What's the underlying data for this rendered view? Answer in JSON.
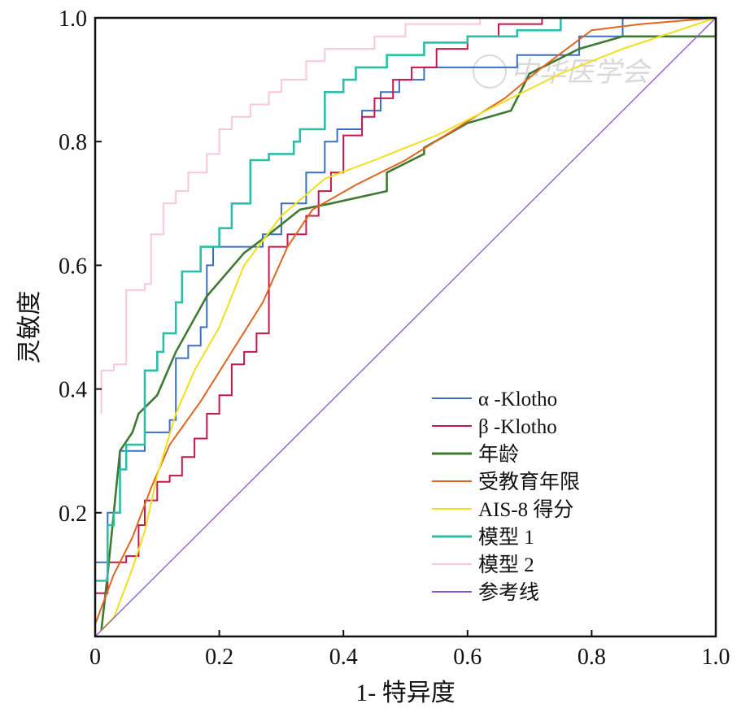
{
  "chart_data": {
    "type": "line",
    "title": "",
    "xlabel": "1- 特异度",
    "ylabel": "灵敏度",
    "xlim": [
      0,
      1
    ],
    "ylim": [
      0,
      1
    ],
    "xticks": [
      "0",
      "0.2",
      "0.4",
      "0.6",
      "0.8",
      "1.0"
    ],
    "xtick_values": [
      0,
      0.2,
      0.4,
      0.6,
      0.8,
      1.0
    ],
    "yticks": [
      "0.2",
      "0.4",
      "0.6",
      "0.8",
      "1.0"
    ],
    "ytick_values": [
      0.2,
      0.4,
      0.6,
      0.8,
      1.0
    ],
    "grid": false,
    "legend_position": "bottom-right",
    "watermark": "中华医学会",
    "series": [
      {
        "name": "α -Klotho",
        "color": "#3a6fc4",
        "step": true,
        "points": [
          [
            0,
            0.12
          ],
          [
            0.02,
            0.12
          ],
          [
            0.02,
            0.2
          ],
          [
            0.04,
            0.2
          ],
          [
            0.04,
            0.3
          ],
          [
            0.08,
            0.3
          ],
          [
            0.08,
            0.33
          ],
          [
            0.12,
            0.33
          ],
          [
            0.12,
            0.35
          ],
          [
            0.13,
            0.35
          ],
          [
            0.13,
            0.45
          ],
          [
            0.15,
            0.45
          ],
          [
            0.15,
            0.47
          ],
          [
            0.17,
            0.47
          ],
          [
            0.17,
            0.5
          ],
          [
            0.18,
            0.5
          ],
          [
            0.18,
            0.6
          ],
          [
            0.19,
            0.6
          ],
          [
            0.19,
            0.63
          ],
          [
            0.27,
            0.63
          ],
          [
            0.27,
            0.65
          ],
          [
            0.3,
            0.65
          ],
          [
            0.3,
            0.7
          ],
          [
            0.34,
            0.7
          ],
          [
            0.34,
            0.75
          ],
          [
            0.37,
            0.75
          ],
          [
            0.37,
            0.8
          ],
          [
            0.39,
            0.8
          ],
          [
            0.39,
            0.82
          ],
          [
            0.43,
            0.82
          ],
          [
            0.43,
            0.85
          ],
          [
            0.46,
            0.85
          ],
          [
            0.46,
            0.88
          ],
          [
            0.49,
            0.88
          ],
          [
            0.49,
            0.9
          ],
          [
            0.53,
            0.9
          ],
          [
            0.53,
            0.92
          ],
          [
            0.68,
            0.92
          ],
          [
            0.68,
            0.94
          ],
          [
            0.78,
            0.94
          ],
          [
            0.78,
            0.97
          ],
          [
            0.85,
            0.97
          ],
          [
            0.85,
            1.0
          ],
          [
            1.0,
            1.0
          ]
        ]
      },
      {
        "name": "β -Klotho",
        "color": "#c8174a",
        "step": true,
        "points": [
          [
            0,
            0.07
          ],
          [
            0.02,
            0.07
          ],
          [
            0.02,
            0.12
          ],
          [
            0.05,
            0.12
          ],
          [
            0.05,
            0.13
          ],
          [
            0.07,
            0.13
          ],
          [
            0.07,
            0.18
          ],
          [
            0.08,
            0.18
          ],
          [
            0.08,
            0.22
          ],
          [
            0.1,
            0.22
          ],
          [
            0.1,
            0.25
          ],
          [
            0.12,
            0.25
          ],
          [
            0.12,
            0.26
          ],
          [
            0.14,
            0.26
          ],
          [
            0.14,
            0.29
          ],
          [
            0.16,
            0.29
          ],
          [
            0.16,
            0.32
          ],
          [
            0.18,
            0.32
          ],
          [
            0.18,
            0.36
          ],
          [
            0.2,
            0.36
          ],
          [
            0.2,
            0.39
          ],
          [
            0.22,
            0.39
          ],
          [
            0.22,
            0.44
          ],
          [
            0.24,
            0.44
          ],
          [
            0.24,
            0.46
          ],
          [
            0.26,
            0.46
          ],
          [
            0.26,
            0.49
          ],
          [
            0.28,
            0.49
          ],
          [
            0.28,
            0.63
          ],
          [
            0.31,
            0.63
          ],
          [
            0.31,
            0.65
          ],
          [
            0.34,
            0.65
          ],
          [
            0.34,
            0.68
          ],
          [
            0.36,
            0.68
          ],
          [
            0.36,
            0.72
          ],
          [
            0.38,
            0.72
          ],
          [
            0.38,
            0.75
          ],
          [
            0.4,
            0.75
          ],
          [
            0.4,
            0.81
          ],
          [
            0.43,
            0.81
          ],
          [
            0.43,
            0.84
          ],
          [
            0.45,
            0.84
          ],
          [
            0.45,
            0.87
          ],
          [
            0.48,
            0.87
          ],
          [
            0.48,
            0.9
          ],
          [
            0.51,
            0.9
          ],
          [
            0.51,
            0.92
          ],
          [
            0.55,
            0.92
          ],
          [
            0.55,
            0.95
          ],
          [
            0.6,
            0.95
          ],
          [
            0.6,
            0.97
          ],
          [
            0.65,
            0.97
          ],
          [
            0.65,
            0.99
          ],
          [
            0.72,
            0.99
          ],
          [
            0.72,
            1.0
          ],
          [
            1.0,
            1.0
          ]
        ]
      },
      {
        "name": "年龄",
        "color": "#3f7a32",
        "step": false,
        "points": [
          [
            0.01,
            0.01
          ],
          [
            0.02,
            0.1
          ],
          [
            0.03,
            0.2
          ],
          [
            0.04,
            0.3
          ],
          [
            0.06,
            0.33
          ],
          [
            0.07,
            0.36
          ],
          [
            0.1,
            0.39
          ],
          [
            0.13,
            0.46
          ],
          [
            0.18,
            0.55
          ],
          [
            0.24,
            0.62
          ],
          [
            0.28,
            0.65
          ],
          [
            0.33,
            0.69
          ],
          [
            0.38,
            0.7
          ],
          [
            0.47,
            0.72
          ],
          [
            0.47,
            0.75
          ],
          [
            0.53,
            0.78
          ],
          [
            0.53,
            0.79
          ],
          [
            0.6,
            0.83
          ],
          [
            0.67,
            0.85
          ],
          [
            0.7,
            0.91
          ],
          [
            0.78,
            0.95
          ],
          [
            0.85,
            0.97
          ],
          [
            1.0,
            0.97
          ],
          [
            1.0,
            1.0
          ]
        ]
      },
      {
        "name": "受教育年限",
        "color": "#e0651e",
        "step": false,
        "points": [
          [
            0,
            0.02
          ],
          [
            0.03,
            0.1
          ],
          [
            0.06,
            0.16
          ],
          [
            0.09,
            0.24
          ],
          [
            0.12,
            0.31
          ],
          [
            0.17,
            0.38
          ],
          [
            0.22,
            0.46
          ],
          [
            0.27,
            0.54
          ],
          [
            0.31,
            0.63
          ],
          [
            0.35,
            0.69
          ],
          [
            0.42,
            0.73
          ],
          [
            0.5,
            0.77
          ],
          [
            0.58,
            0.82
          ],
          [
            0.66,
            0.87
          ],
          [
            0.72,
            0.92
          ],
          [
            0.8,
            0.98
          ],
          [
            0.88,
            0.99
          ],
          [
            1.0,
            1.0
          ]
        ]
      },
      {
        "name": "AIS-8 得分",
        "color": "#f0e01c",
        "step": false,
        "points": [
          [
            0.01,
            0.01
          ],
          [
            0.03,
            0.03
          ],
          [
            0.06,
            0.11
          ],
          [
            0.08,
            0.17
          ],
          [
            0.1,
            0.26
          ],
          [
            0.13,
            0.36
          ],
          [
            0.16,
            0.43
          ],
          [
            0.2,
            0.5
          ],
          [
            0.24,
            0.6
          ],
          [
            0.3,
            0.68
          ],
          [
            0.37,
            0.74
          ],
          [
            0.45,
            0.77
          ],
          [
            0.55,
            0.81
          ],
          [
            0.65,
            0.86
          ],
          [
            0.75,
            0.91
          ],
          [
            0.85,
            0.95
          ],
          [
            1.0,
            1.0
          ]
        ]
      },
      {
        "name": "模型 1",
        "color": "#2bbfa7",
        "step": true,
        "points": [
          [
            0,
            0.09
          ],
          [
            0.02,
            0.09
          ],
          [
            0.02,
            0.18
          ],
          [
            0.03,
            0.18
          ],
          [
            0.03,
            0.2
          ],
          [
            0.04,
            0.2
          ],
          [
            0.04,
            0.27
          ],
          [
            0.05,
            0.27
          ],
          [
            0.05,
            0.31
          ],
          [
            0.08,
            0.31
          ],
          [
            0.08,
            0.43
          ],
          [
            0.1,
            0.43
          ],
          [
            0.1,
            0.46
          ],
          [
            0.11,
            0.46
          ],
          [
            0.11,
            0.49
          ],
          [
            0.13,
            0.49
          ],
          [
            0.13,
            0.54
          ],
          [
            0.14,
            0.54
          ],
          [
            0.14,
            0.59
          ],
          [
            0.17,
            0.59
          ],
          [
            0.17,
            0.63
          ],
          [
            0.2,
            0.63
          ],
          [
            0.2,
            0.66
          ],
          [
            0.22,
            0.66
          ],
          [
            0.22,
            0.7
          ],
          [
            0.25,
            0.7
          ],
          [
            0.25,
            0.77
          ],
          [
            0.28,
            0.77
          ],
          [
            0.28,
            0.78
          ],
          [
            0.32,
            0.78
          ],
          [
            0.32,
            0.8
          ],
          [
            0.33,
            0.8
          ],
          [
            0.33,
            0.82
          ],
          [
            0.37,
            0.82
          ],
          [
            0.37,
            0.88
          ],
          [
            0.4,
            0.88
          ],
          [
            0.4,
            0.9
          ],
          [
            0.42,
            0.9
          ],
          [
            0.42,
            0.92
          ],
          [
            0.47,
            0.92
          ],
          [
            0.47,
            0.94
          ],
          [
            0.53,
            0.94
          ],
          [
            0.53,
            0.96
          ],
          [
            0.6,
            0.96
          ],
          [
            0.6,
            0.97
          ],
          [
            0.68,
            0.97
          ],
          [
            0.68,
            0.98
          ],
          [
            0.75,
            0.98
          ],
          [
            0.75,
            1.0
          ],
          [
            1.0,
            1.0
          ]
        ]
      },
      {
        "name": "模型 2",
        "color": "#f8c6de",
        "step": true,
        "points": [
          [
            0.01,
            0.36
          ],
          [
            0.01,
            0.43
          ],
          [
            0.03,
            0.43
          ],
          [
            0.03,
            0.44
          ],
          [
            0.05,
            0.44
          ],
          [
            0.05,
            0.56
          ],
          [
            0.08,
            0.56
          ],
          [
            0.08,
            0.57
          ],
          [
            0.09,
            0.57
          ],
          [
            0.09,
            0.65
          ],
          [
            0.11,
            0.65
          ],
          [
            0.11,
            0.7
          ],
          [
            0.13,
            0.7
          ],
          [
            0.13,
            0.72
          ],
          [
            0.15,
            0.72
          ],
          [
            0.15,
            0.75
          ],
          [
            0.18,
            0.75
          ],
          [
            0.18,
            0.78
          ],
          [
            0.2,
            0.78
          ],
          [
            0.2,
            0.82
          ],
          [
            0.22,
            0.82
          ],
          [
            0.22,
            0.84
          ],
          [
            0.25,
            0.84
          ],
          [
            0.25,
            0.86
          ],
          [
            0.28,
            0.86
          ],
          [
            0.28,
            0.88
          ],
          [
            0.3,
            0.88
          ],
          [
            0.3,
            0.9
          ],
          [
            0.34,
            0.9
          ],
          [
            0.34,
            0.93
          ],
          [
            0.37,
            0.93
          ],
          [
            0.37,
            0.95
          ],
          [
            0.45,
            0.95
          ],
          [
            0.45,
            0.97
          ],
          [
            0.5,
            0.97
          ],
          [
            0.5,
            0.99
          ],
          [
            0.62,
            0.99
          ],
          [
            0.62,
            1.0
          ],
          [
            1.0,
            1.0
          ]
        ]
      },
      {
        "name": "参考线",
        "color": "#8a55d8",
        "step": false,
        "points": [
          [
            0,
            0
          ],
          [
            1,
            1
          ]
        ]
      }
    ]
  }
}
